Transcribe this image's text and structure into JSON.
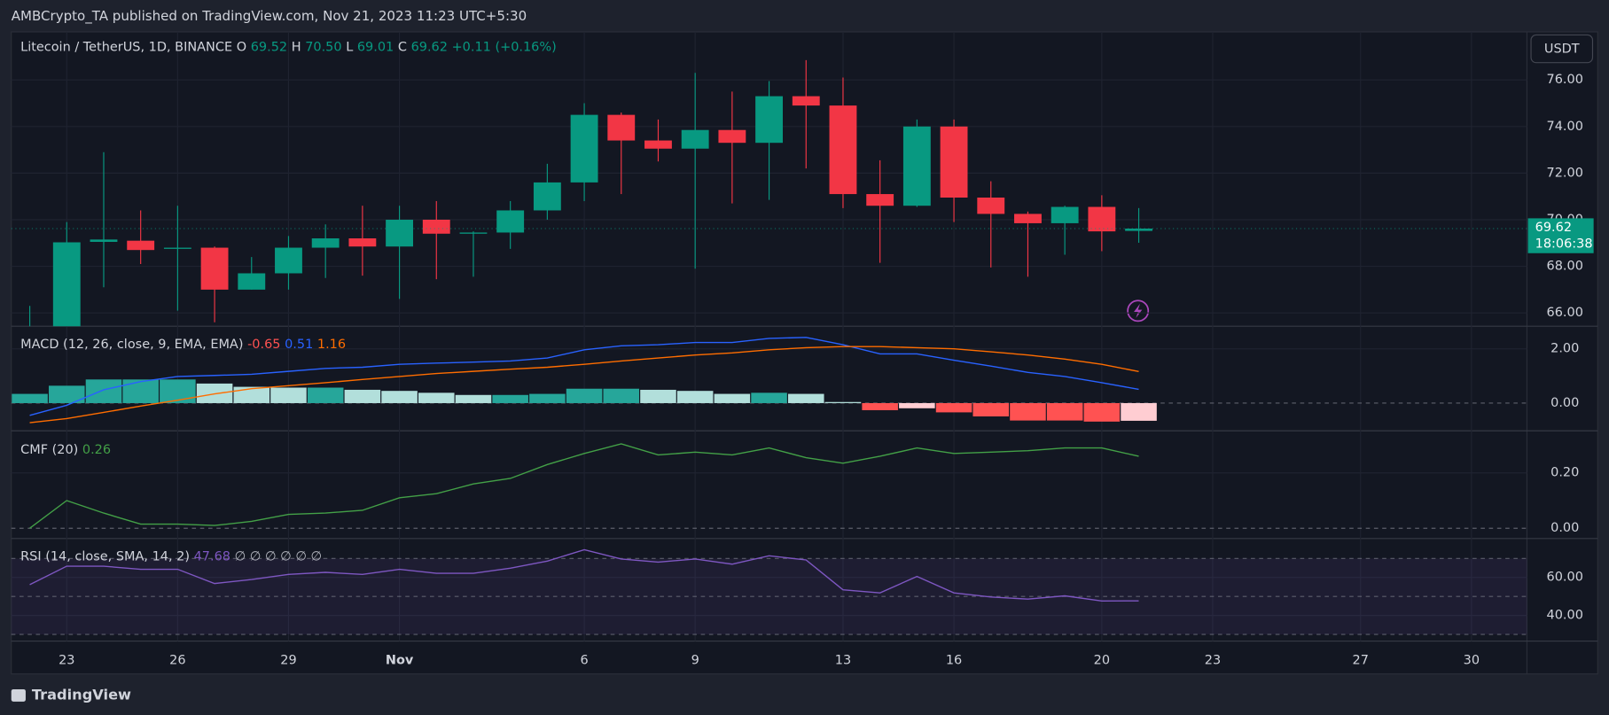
{
  "header": "AMBCrypto_TA published on TradingView.com, Nov 21, 2023 11:23 UTC+5:30",
  "currency": "USDT",
  "brand": "TradingView",
  "chart_data": [
    {
      "type": "candlestick",
      "title": "Litecoin / TetherUS, 1D, BINANCE",
      "ohlc_names": [
        "O",
        "H",
        "L",
        "C"
      ],
      "ohlc_labels": [
        "69.52",
        "70.50",
        "69.01",
        "69.62"
      ],
      "change": "+0.11 (+0.16%)",
      "last_price_label": "69.62",
      "countdown": "18:06:38",
      "up_color": "#089981",
      "down_color": "#f23645",
      "x": [
        0,
        1,
        2,
        3,
        4,
        5,
        6,
        7,
        8,
        9,
        10,
        11,
        12,
        13,
        14,
        15,
        16,
        17,
        18,
        19,
        20,
        21,
        22,
        23,
        24,
        25,
        26,
        27,
        28,
        29,
        30
      ],
      "open": [
        64.5,
        65.2,
        69.05,
        69.1,
        68.75,
        68.8,
        67.0,
        67.7,
        68.8,
        69.2,
        68.85,
        70.0,
        69.4,
        69.45,
        70.4,
        71.6,
        74.5,
        73.4,
        73.05,
        73.85,
        73.3,
        75.3,
        74.9,
        71.1,
        70.6,
        74.0,
        70.95,
        70.25,
        69.85,
        70.55,
        69.52
      ],
      "high": [
        66.3,
        69.9,
        72.9,
        70.4,
        70.6,
        68.85,
        68.4,
        69.3,
        69.8,
        70.6,
        70.6,
        70.8,
        69.5,
        70.8,
        72.4,
        75.0,
        74.6,
        74.3,
        76.3,
        75.5,
        75.95,
        76.85,
        76.1,
        72.55,
        74.3,
        74.3,
        71.65,
        70.35,
        70.6,
        71.05,
        70.5
      ],
      "low": [
        64.0,
        64.9,
        67.1,
        68.1,
        66.1,
        65.6,
        67.0,
        67.0,
        67.5,
        67.6,
        66.6,
        67.45,
        67.55,
        68.75,
        70.0,
        70.8,
        71.1,
        72.5,
        67.9,
        70.7,
        70.85,
        72.2,
        70.5,
        68.15,
        70.55,
        69.9,
        67.95,
        67.55,
        68.5,
        68.65,
        69.01
      ],
      "close": [
        65.2,
        69.03,
        69.15,
        68.7,
        68.8,
        67.0,
        67.7,
        68.8,
        69.2,
        68.85,
        70.0,
        69.4,
        69.45,
        70.4,
        71.6,
        74.5,
        73.4,
        73.05,
        73.85,
        73.3,
        75.3,
        74.9,
        71.1,
        70.6,
        74.0,
        70.95,
        70.25,
        69.85,
        70.55,
        69.5,
        69.62
      ],
      "xlim": [
        -0.5,
        40.5
      ],
      "xticks": [
        {
          "value": 1,
          "label": "23"
        },
        {
          "value": 4,
          "label": "26"
        },
        {
          "value": 7,
          "label": "29"
        },
        {
          "value": 10,
          "label": "Nov"
        },
        {
          "value": 15,
          "label": "6"
        },
        {
          "value": 18,
          "label": "9"
        },
        {
          "value": 22,
          "label": "13"
        },
        {
          "value": 25,
          "label": "16"
        },
        {
          "value": 29,
          "label": "20"
        },
        {
          "value": 32,
          "label": "23"
        },
        {
          "value": 36,
          "label": "27"
        },
        {
          "value": 39,
          "label": "30"
        }
      ],
      "ylim": [
        65.43,
        78.06
      ],
      "yticks": [
        {
          "value": 66,
          "label": "66.00"
        },
        {
          "value": 68,
          "label": "68.00"
        },
        {
          "value": 70,
          "label": "70.00"
        },
        {
          "value": 72,
          "label": "72.00"
        },
        {
          "value": 74,
          "label": "74.00"
        },
        {
          "value": 76,
          "label": "76.00"
        }
      ],
      "grid": true
    },
    {
      "type": "macd",
      "title": "MACD (12, 26, close, 9, EMA, EMA)",
      "histogram": {
        "colors": [
          "#26a69a",
          "#b2dfdb",
          "#ffcdd2",
          "#ff5252"
        ],
        "values": [
          0.34,
          0.64,
          0.87,
          0.87,
          0.87,
          0.72,
          0.6,
          0.57,
          0.57,
          0.49,
          0.45,
          0.38,
          0.3,
          0.3,
          0.34,
          0.53,
          0.53,
          0.49,
          0.45,
          0.34,
          0.38,
          0.34,
          0.04,
          -0.26,
          -0.19,
          -0.34,
          -0.49,
          -0.64,
          -0.64,
          -0.68,
          -0.65
        ]
      },
      "macd": {
        "color": "#2962ff",
        "values": [
          -0.45,
          -0.08,
          0.49,
          0.79,
          0.98,
          1.02,
          1.06,
          1.17,
          1.28,
          1.32,
          1.43,
          1.47,
          1.51,
          1.55,
          1.66,
          1.96,
          2.11,
          2.15,
          2.23,
          2.23,
          2.38,
          2.42,
          2.15,
          1.81,
          1.81,
          1.58,
          1.36,
          1.13,
          0.98,
          0.75,
          0.51
        ]
      },
      "signal": {
        "color": "#ff6d00",
        "values": [
          -0.72,
          -0.57,
          -0.34,
          -0.11,
          0.11,
          0.34,
          0.53,
          0.64,
          0.75,
          0.87,
          0.98,
          1.09,
          1.17,
          1.25,
          1.32,
          1.43,
          1.55,
          1.66,
          1.77,
          1.85,
          1.96,
          2.04,
          2.08,
          2.08,
          2.04,
          2.0,
          1.89,
          1.77,
          1.62,
          1.43,
          1.16
        ]
      },
      "ylim": [
        -1.02,
        2.83
      ],
      "yticks": [
        {
          "value": 0,
          "label": "0.00"
        },
        {
          "value": 2,
          "label": "2.00"
        }
      ]
    },
    {
      "type": "line",
      "title": "CMF (20)",
      "color": "#43a047",
      "values": [
        0.0,
        0.1,
        0.055,
        0.015,
        0.015,
        0.01,
        0.025,
        0.05,
        0.055,
        0.065,
        0.11,
        0.125,
        0.16,
        0.18,
        0.23,
        0.27,
        0.305,
        0.265,
        0.275,
        0.265,
        0.29,
        0.255,
        0.235,
        0.26,
        0.29,
        0.27,
        0.275,
        0.28,
        0.29,
        0.29,
        0.26
      ],
      "ylim": [
        -0.037,
        0.352
      ],
      "yticks": [
        {
          "value": 0,
          "label": "0.00"
        },
        {
          "value": 0.2,
          "label": "0.20"
        }
      ]
    },
    {
      "type": "rsi",
      "title": "RSI (14, close, SMA, 14, 2)",
      "extra": "∅ ∅ ∅ ∅ ∅ ∅",
      "color": "#7e57c2",
      "values": [
        56.2,
        65.9,
        65.9,
        64.3,
        64.3,
        56.8,
        58.9,
        61.6,
        62.7,
        61.6,
        64.3,
        62.2,
        62.2,
        64.9,
        68.6,
        74.6,
        69.7,
        68.1,
        69.7,
        67.0,
        71.4,
        69.2,
        53.5,
        51.9,
        60.5,
        51.9,
        49.7,
        48.6,
        50.3,
        47.6,
        47.68
      ],
      "bands": [
        70,
        50,
        30
      ],
      "ylim": [
        26.5,
        80.5
      ],
      "yticks": [
        {
          "value": 40,
          "label": "40.00"
        },
        {
          "value": 60,
          "label": "60.00"
        }
      ]
    }
  ]
}
